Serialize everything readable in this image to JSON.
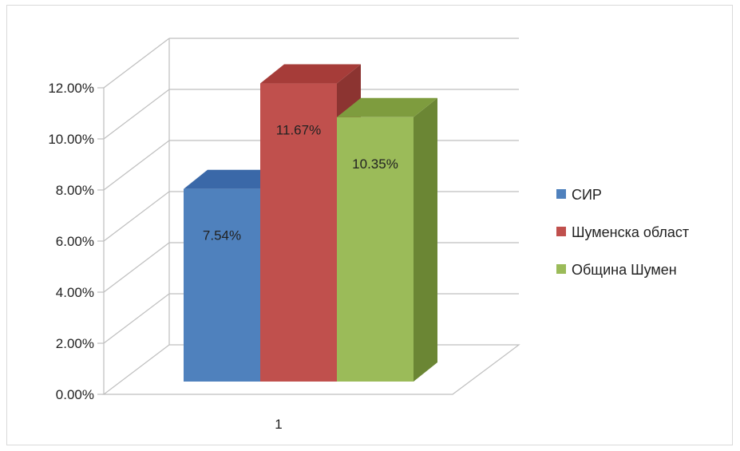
{
  "chart_data": {
    "type": "bar",
    "categories": [
      "1"
    ],
    "series": [
      {
        "name": "СИР",
        "values": [
          0.0754
        ],
        "label": "7.54%",
        "color": "#4f81bd",
        "top_color": "#3a68a8",
        "side_color": "#2f5690"
      },
      {
        "name": "Шуменска област",
        "values": [
          0.1167
        ],
        "label": "11.67%",
        "color": "#c0504d",
        "top_color": "#a63c39",
        "side_color": "#8c3431"
      },
      {
        "name": "Община Шумен",
        "values": [
          0.1035
        ],
        "label": "10.35%",
        "color": "#9bbb59",
        "top_color": "#7e9c3e",
        "side_color": "#6b8634"
      }
    ],
    "y_ticks": [
      "0.00%",
      "2.00%",
      "4.00%",
      "6.00%",
      "8.00%",
      "10.00%",
      "12.00%"
    ],
    "ylim": [
      0,
      0.12
    ],
    "grid": true,
    "legend": "right",
    "title": "",
    "xlabel": "",
    "ylabel": ""
  }
}
